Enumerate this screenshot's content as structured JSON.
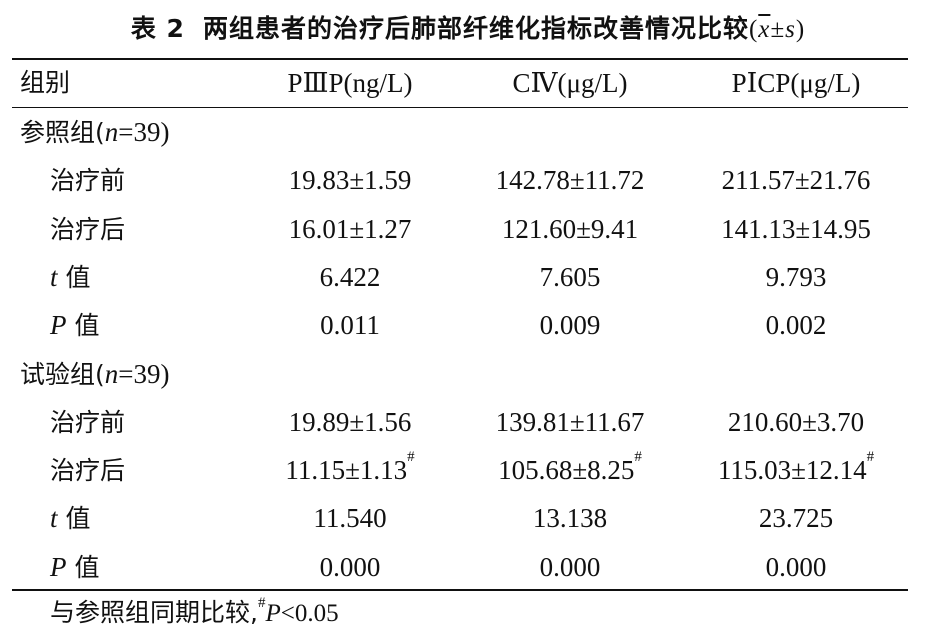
{
  "table": {
    "caption_label": "表 2",
    "caption_text": "两组患者的治疗后肺部纤维化指标改善情况比较",
    "caption_stat_open": "(",
    "caption_stat_x": "x",
    "caption_stat_rest": "±s",
    "caption_stat_close": ")",
    "headers": [
      "组别",
      "PⅢP(ng/L)",
      "CⅣ(μg/L)",
      "PⅠCP(μg/L)"
    ],
    "groups": [
      {
        "name_pre": "参照组(",
        "name_n": "n",
        "name_post": "=39)",
        "rows": [
          {
            "label_italic": "",
            "label": "治疗前",
            "values": [
              "19.83±1.59",
              "142.78±11.72",
              "211.57±21.76"
            ],
            "marks": [
              "",
              "",
              ""
            ]
          },
          {
            "label_italic": "",
            "label": "治疗后",
            "values": [
              "16.01±1.27",
              "121.60±9.41",
              "141.13±14.95"
            ],
            "marks": [
              "",
              "",
              ""
            ]
          },
          {
            "label_italic": "t",
            "label": " 值",
            "values": [
              "6.422",
              "7.605",
              "9.793"
            ],
            "marks": [
              "",
              "",
              ""
            ]
          },
          {
            "label_italic": "P",
            "label": " 值",
            "values": [
              "0.011",
              "0.009",
              "0.002"
            ],
            "marks": [
              "",
              "",
              ""
            ]
          }
        ]
      },
      {
        "name_pre": "试验组(",
        "name_n": "n",
        "name_post": "=39)",
        "rows": [
          {
            "label_italic": "",
            "label": "治疗前",
            "values": [
              "19.89±1.56",
              "139.81±11.67",
              "210.60±3.70"
            ],
            "marks": [
              "",
              "",
              ""
            ]
          },
          {
            "label_italic": "",
            "label": "治疗后",
            "values": [
              "11.15±1.13",
              "105.68±8.25",
              "115.03±12.14"
            ],
            "marks": [
              "#",
              "#",
              "#"
            ]
          },
          {
            "label_italic": "t",
            "label": " 值",
            "values": [
              "11.540",
              "13.138",
              "23.725"
            ],
            "marks": [
              "",
              "",
              ""
            ]
          },
          {
            "label_italic": "P",
            "label": " 值",
            "values": [
              "0.000",
              "0.000",
              "0.000"
            ],
            "marks": [
              "",
              "",
              ""
            ]
          }
        ]
      }
    ],
    "footnote_text": "与参照组同期比较,",
    "footnote_mark": "#",
    "footnote_p": "P",
    "footnote_cond": "<0.05"
  }
}
